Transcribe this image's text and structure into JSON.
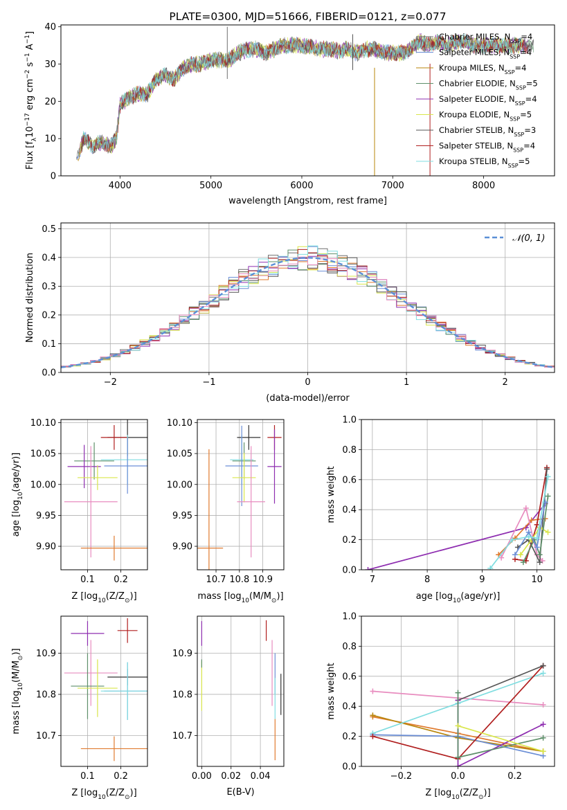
{
  "chart_data": [
    {
      "id": "spectrum",
      "type": "line",
      "title": "PLATE=0300, MJD=51666, FIBERID=0121, z=0.077",
      "xlabel": "wavelength [Angstrom, rest frame]",
      "ylabel_parts": [
        "Flux [f",
        "λ",
        "10",
        "−17",
        " erg cm",
        "−2",
        " s",
        "−1",
        " A",
        "−1",
        "]"
      ],
      "xlim": [
        3350,
        8780
      ],
      "ylim": [
        0,
        40.5
      ],
      "xticks": [
        4000,
        5000,
        6000,
        7000,
        8000
      ],
      "yticks": [
        0,
        10,
        20,
        30,
        40
      ],
      "legend_loc": "upper right",
      "series": [
        {
          "name": "Chabrier MILES",
          "nssp": "4",
          "color": "#6f6f6f"
        },
        {
          "name": "Salpeter MILES",
          "nssp": "4",
          "color": "#6b8ed6"
        },
        {
          "name": "Kroupa MILES",
          "nssp": "4",
          "color": "#b8860b"
        },
        {
          "name": "Chabrier ELODIE",
          "nssp": "5",
          "color": "#5e8f6a"
        },
        {
          "name": "Salpeter ELODIE",
          "nssp": "4",
          "color": "#8e2db0"
        },
        {
          "name": "Kroupa ELODIE",
          "nssp": "5",
          "color": "#d9e64a"
        },
        {
          "name": "Chabrier STELIB",
          "nssp": "3",
          "color": "#555555"
        },
        {
          "name": "Salpeter STELIB",
          "nssp": "4",
          "color": "#b01e1e"
        },
        {
          "name": "Kroupa STELIB",
          "nssp": "5",
          "color": "#7fdde0"
        }
      ],
      "continuum": {
        "x": [
          3520,
          3600,
          3700,
          3800,
          3900,
          3960,
          4000,
          4100,
          4200,
          4300,
          4400,
          4500,
          4600,
          4700,
          4800,
          4900,
          5000,
          5100,
          5200,
          5300,
          5400,
          5500,
          5600,
          5700,
          5800,
          5900,
          6000,
          6100,
          6200,
          6300,
          6400,
          6500,
          6600,
          6700,
          6800,
          6900,
          7000,
          7100,
          7200,
          7300,
          7400,
          7500,
          7600,
          7700,
          7800,
          7900,
          8000,
          8100,
          8200,
          8300,
          8400,
          8500,
          8550
        ],
        "y": [
          4,
          10,
          8,
          9,
          8,
          10,
          19,
          21,
          22,
          22,
          26,
          27,
          26,
          29,
          30,
          30,
          31,
          31,
          31,
          33,
          34,
          34,
          33,
          34,
          35,
          35,
          35,
          34.5,
          34,
          34,
          33.5,
          34,
          33,
          34,
          34,
          33,
          33,
          33,
          34,
          36,
          35,
          36,
          35,
          36,
          36,
          35,
          35,
          35,
          35,
          35,
          35,
          35,
          35
        ]
      },
      "spikes": [
        {
          "x": 5180,
          "y": 40,
          "color": "#6f6f6f"
        },
        {
          "x": 6800,
          "y": 0,
          "color": "#b8860b"
        },
        {
          "x": 7410,
          "y": 0,
          "color": "#b01e1e"
        },
        {
          "x": 6560,
          "y": 38,
          "color": "#555555"
        }
      ]
    },
    {
      "id": "hist",
      "type": "area",
      "xlabel": "(data-model)/error",
      "ylabel": "Normed distribution",
      "xlim": [
        -2.5,
        2.5
      ],
      "ylim": [
        0,
        0.52
      ],
      "xticks": [
        -2,
        -1,
        0,
        1,
        2
      ],
      "yticks": [
        0.0,
        0.1,
        0.2,
        0.3,
        0.4,
        0.5
      ],
      "legend": "𝒩(0, 1)",
      "legend_loc": "upper right",
      "bin_width": 0.1,
      "bin_start": -2.5,
      "series_colors": [
        "#6f6f6f",
        "#6b8ed6",
        "#e07a2e",
        "#5e8f6a",
        "#8e2db0",
        "#d9e64a",
        "#555555",
        "#b01e1e",
        "#7fdde0",
        "#e88cbf"
      ]
    },
    {
      "id": "age-vs-Z",
      "type": "scatter",
      "xlabel_parts": [
        "Z [log",
        "10",
        "(Z/Z",
        "⊙",
        ")]"
      ],
      "ylabel_parts": [
        "age  [log",
        "10",
        "(age/yr)]"
      ],
      "xlim": [
        0.02,
        0.28
      ],
      "ylim": [
        9.862,
        10.105
      ],
      "xticks": [
        0.1,
        0.2
      ],
      "yticks": [
        9.9,
        9.95,
        10.0,
        10.05,
        10.1
      ],
      "points": [
        {
          "x": 0.22,
          "y": 10.076,
          "xe": 0.06,
          "ye": 0.03,
          "color": "#333333"
        },
        {
          "x": 0.18,
          "y": 10.076,
          "xe": 0.04,
          "ye": 0.02,
          "color": "#b01e1e"
        },
        {
          "x": 0.22,
          "y": 10.04,
          "xe": 0.08,
          "ye": 0.04,
          "color": "#7fdde0"
        },
        {
          "x": 0.12,
          "y": 10.038,
          "xe": 0.06,
          "ye": 0.03,
          "color": "#5e8f6a"
        },
        {
          "x": 0.22,
          "y": 10.03,
          "xe": 0.07,
          "ye": 0.045,
          "color": "#6b8ed6"
        },
        {
          "x": 0.09,
          "y": 10.029,
          "xe": 0.05,
          "ye": 0.035,
          "color": "#8e2db0"
        },
        {
          "x": 0.13,
          "y": 10.011,
          "xe": 0.06,
          "ye": 0.02,
          "color": "#d9e64a"
        },
        {
          "x": 0.11,
          "y": 9.972,
          "xe": 0.08,
          "ye": 0.09,
          "color": "#e88cbf"
        },
        {
          "x": 0.18,
          "y": 9.897,
          "xe": 0.1,
          "ye": 0.02,
          "color": "#e07a2e"
        }
      ]
    },
    {
      "id": "age-vs-mass",
      "type": "scatter",
      "xlabel_parts": [
        "mass [log",
        "10",
        "(M/M",
        "⊙",
        ")]"
      ],
      "ylabel_parts": [],
      "xlim": [
        10.62,
        10.99
      ],
      "ylim": [
        9.862,
        10.105
      ],
      "xticks": [
        10.7,
        10.8,
        10.9
      ],
      "yticks": [
        9.9,
        9.95,
        10.0,
        10.05,
        10.1
      ],
      "points": [
        {
          "x": 10.84,
          "y": 10.076,
          "xe": 0.05,
          "ye": 0.02,
          "color": "#333333"
        },
        {
          "x": 10.95,
          "y": 10.076,
          "xe": 0.03,
          "ye": 0.02,
          "color": "#b01e1e"
        },
        {
          "x": 10.81,
          "y": 10.04,
          "xe": 0.05,
          "ye": 0.04,
          "color": "#7fdde0"
        },
        {
          "x": 10.82,
          "y": 10.038,
          "xe": 0.05,
          "ye": 0.03,
          "color": "#5e8f6a"
        },
        {
          "x": 10.81,
          "y": 10.03,
          "xe": 0.07,
          "ye": 0.065,
          "color": "#6b8ed6"
        },
        {
          "x": 10.95,
          "y": 10.029,
          "xe": 0.03,
          "ye": 0.06,
          "color": "#8e2db0"
        },
        {
          "x": 10.82,
          "y": 10.011,
          "xe": 0.05,
          "ye": 0.04,
          "color": "#d9e64a"
        },
        {
          "x": 10.85,
          "y": 9.972,
          "xe": 0.06,
          "ye": 0.09,
          "color": "#e88cbf"
        },
        {
          "x": 10.67,
          "y": 9.897,
          "xe": 0.06,
          "ye": 0.16,
          "color": "#e07a2e"
        }
      ]
    },
    {
      "id": "mass-vs-Z",
      "type": "scatter",
      "xlabel_parts": [
        "Z [log",
        "10",
        "(Z/Z",
        "⊙",
        ")]"
      ],
      "ylabel_parts": [
        "mass [log",
        "10",
        "(M/M",
        "⊙",
        ")]"
      ],
      "xlim": [
        0.02,
        0.28
      ],
      "ylim": [
        10.625,
        10.99
      ],
      "xticks": [
        0.1,
        0.2
      ],
      "yticks": [
        10.7,
        10.8,
        10.9
      ],
      "points": [
        {
          "x": 0.1,
          "y": 10.948,
          "xe": 0.05,
          "ye": 0.03,
          "color": "#8e2db0"
        },
        {
          "x": 0.22,
          "y": 10.955,
          "xe": 0.03,
          "ye": 0.03,
          "color": "#b01e1e"
        },
        {
          "x": 0.11,
          "y": 10.852,
          "xe": 0.08,
          "ye": 0.08,
          "color": "#e88cbf"
        },
        {
          "x": 0.22,
          "y": 10.842,
          "xe": 0.06,
          "ye": 0.02,
          "color": "#333333"
        },
        {
          "x": 0.1,
          "y": 10.82,
          "xe": 0.05,
          "ye": 0.08,
          "color": "#5e8f6a"
        },
        {
          "x": 0.13,
          "y": 10.815,
          "xe": 0.06,
          "ye": 0.07,
          "color": "#d9e64a"
        },
        {
          "x": 0.22,
          "y": 10.808,
          "xe": 0.07,
          "ye": 0.07,
          "color": "#6b8ed6"
        },
        {
          "x": 0.22,
          "y": 10.808,
          "xe": 0.08,
          "ye": 0.07,
          "color": "#7fdde0"
        },
        {
          "x": 0.18,
          "y": 10.668,
          "xe": 0.1,
          "ye": 0.03,
          "color": "#e07a2e"
        }
      ]
    },
    {
      "id": "mass-vs-ebv",
      "type": "scatter",
      "xlabel": "E(B-V)",
      "ylabel_parts": [],
      "xlim": [
        -0.003,
        0.056
      ],
      "ylim": [
        10.625,
        10.99
      ],
      "xticks": [
        0.0,
        0.02,
        0.04
      ],
      "yticks": [
        10.7,
        10.8,
        10.9
      ],
      "points": [
        {
          "x": 0.0,
          "y": 10.948,
          "xe": 0,
          "ye": 0.03,
          "color": "#8e2db0"
        },
        {
          "x": 0.044,
          "y": 10.955,
          "xe": 0,
          "ye": 0.025,
          "color": "#b01e1e"
        },
        {
          "x": 0.048,
          "y": 10.852,
          "xe": 0,
          "ye": 0.08,
          "color": "#e88cbf"
        },
        {
          "x": 0.054,
          "y": 10.8,
          "xe": 0,
          "ye": 0.05,
          "color": "#333333"
        },
        {
          "x": 0.0,
          "y": 10.82,
          "xe": 0,
          "ye": 0.06,
          "color": "#d9e64a"
        },
        {
          "x": 0.0,
          "y": 10.875,
          "xe": 0,
          "ye": 0.01,
          "color": "#5e8f6a"
        },
        {
          "x": 0.05,
          "y": 10.85,
          "xe": 0,
          "ye": 0.05,
          "color": "#6b8ed6"
        },
        {
          "x": 0.05,
          "y": 10.79,
          "xe": 0,
          "ye": 0.05,
          "color": "#7fdde0"
        },
        {
          "x": 0.05,
          "y": 10.69,
          "xe": 0,
          "ye": 0.05,
          "color": "#e07a2e"
        }
      ]
    },
    {
      "id": "weight-vs-age",
      "type": "line",
      "xlabel_parts": [
        "age  [log",
        "10",
        "(age/yr)]"
      ],
      "ylabel": "mass weight",
      "xlim": [
        6.8,
        10.32
      ],
      "ylim": [
        0,
        1.0
      ],
      "xticks": [
        7,
        8,
        9,
        10
      ],
      "yticks": [
        0.0,
        0.2,
        0.4,
        0.6,
        0.8,
        1.0
      ],
      "series": [
        {
          "color": "#8e2db0",
          "x": [
            6.92,
            9.8,
            10.15
          ],
          "y": [
            0.0,
            0.28,
            0.44
          ]
        },
        {
          "color": "#e07a2e",
          "x": [
            9.3,
            9.6,
            9.9,
            10.15
          ],
          "y": [
            0.1,
            0.21,
            0.33,
            0.34
          ]
        },
        {
          "color": "#e88cbf",
          "x": [
            9.35,
            9.8,
            10.0,
            10.1
          ],
          "y": [
            0.08,
            0.41,
            0.1,
            0.06
          ]
        },
        {
          "color": "#b01e1e",
          "x": [
            9.6,
            9.8,
            10.0,
            10.18
          ],
          "y": [
            0.07,
            0.06,
            0.3,
            0.68
          ]
        },
        {
          "color": "#555555",
          "x": [
            9.65,
            9.85,
            10.05,
            10.18
          ],
          "y": [
            0.15,
            0.2,
            0.05,
            0.67
          ]
        },
        {
          "color": "#d9e64a",
          "x": [
            9.7,
            9.9,
            10.05,
            10.2
          ],
          "y": [
            0.1,
            0.2,
            0.28,
            0.25
          ]
        },
        {
          "color": "#5e8f6a",
          "x": [
            9.75,
            9.95,
            10.05,
            10.2
          ],
          "y": [
            0.05,
            0.2,
            0.1,
            0.49
          ]
        },
        {
          "color": "#6b8ed6",
          "x": [
            9.6,
            9.85,
            10.0,
            10.15
          ],
          "y": [
            0.1,
            0.25,
            0.15,
            0.45
          ]
        },
        {
          "color": "#7fdde0",
          "x": [
            9.15,
            9.55,
            9.85,
            10.0,
            10.2
          ],
          "y": [
            0.01,
            0.2,
            0.22,
            0.21,
            0.62
          ]
        }
      ]
    },
    {
      "id": "weight-vs-Z",
      "type": "line",
      "xlabel_parts": [
        "Z [log",
        "10",
        "(Z/Z",
        "⊙",
        ")]"
      ],
      "ylabel": "mass weight",
      "xlim": [
        -0.34,
        0.34
      ],
      "ylim": [
        0,
        1.0
      ],
      "xticks": [
        -0.2,
        0.0,
        0.2
      ],
      "yticks": [
        0.0,
        0.2,
        0.4,
        0.6,
        0.8,
        1.0
      ],
      "series": [
        {
          "color": "#e88cbf",
          "x": [
            -0.3,
            0.3
          ],
          "y": [
            0.5,
            0.41
          ]
        },
        {
          "color": "#e07a2e",
          "x": [
            -0.3,
            0.0,
            0.3
          ],
          "y": [
            0.33,
            0.22,
            0.1
          ]
        },
        {
          "color": "#b8860b",
          "x": [
            -0.3,
            0.0,
            0.3
          ],
          "y": [
            0.34,
            0.19,
            0.1
          ]
        },
        {
          "color": "#6b8ed6",
          "x": [
            -0.3,
            0.0,
            0.3
          ],
          "y": [
            0.21,
            0.2,
            0.07
          ]
        },
        {
          "color": "#7fdde0",
          "x": [
            -0.3,
            0.0,
            0.3
          ],
          "y": [
            0.22,
            0.42,
            0.62
          ]
        },
        {
          "color": "#b01e1e",
          "x": [
            -0.3,
            0.0,
            0.3
          ],
          "y": [
            0.2,
            0.05,
            0.67
          ]
        },
        {
          "color": "#555555",
          "x": [
            0.0,
            0.3
          ],
          "y": [
            0.44,
            0.67
          ]
        },
        {
          "color": "#8e2db0",
          "x": [
            0.0,
            0.0,
            0.3
          ],
          "y": [
            0.44,
            0.0,
            0.28
          ]
        },
        {
          "color": "#5e8f6a",
          "x": [
            0.0,
            0.0,
            0.3
          ],
          "y": [
            0.49,
            0.06,
            0.19
          ]
        },
        {
          "color": "#d9e64a",
          "x": [
            0.0,
            0.3
          ],
          "y": [
            0.27,
            0.1
          ]
        }
      ]
    }
  ]
}
